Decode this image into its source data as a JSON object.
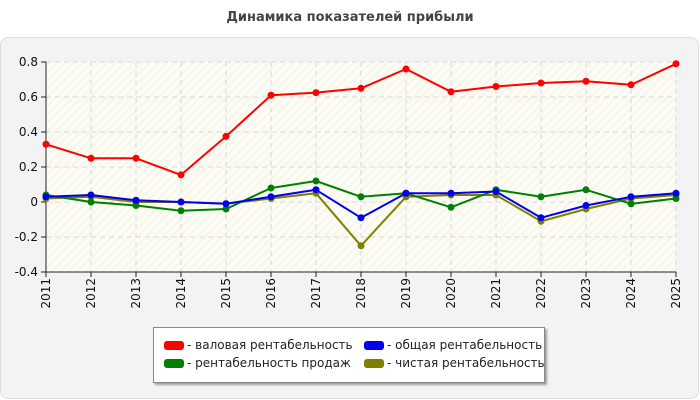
{
  "title": "Динамика показателей прибыли",
  "colors": {
    "background": "#f3f3f3",
    "plot_background": "#fbfbf1",
    "grid": "#d8d8d8",
    "axis": "#222222"
  },
  "chart_data": {
    "type": "line",
    "title": "Динамика показателей прибыли",
    "xlabel": "",
    "ylabel": "",
    "x": [
      "2011",
      "2012",
      "2013",
      "2014",
      "2015",
      "2016",
      "2017",
      "2018",
      "2019",
      "2020",
      "2021",
      "2022",
      "2023",
      "2024",
      "2025"
    ],
    "ylim": [
      -0.4,
      0.8
    ],
    "yticks": [
      -0.4,
      -0.2,
      0,
      0.2,
      0.4,
      0.6,
      0.8
    ],
    "ytick_labels": [
      "-0.4",
      "-0.2",
      "0",
      "0.2",
      "0.4",
      "0.6",
      "0.8"
    ],
    "grid": true,
    "legend_position": "bottom",
    "series": [
      {
        "name": "- валовая рентабельность",
        "color": "#ff0000",
        "values": [
          0.33,
          0.25,
          0.25,
          0.155,
          0.375,
          0.61,
          0.625,
          0.65,
          0.76,
          0.63,
          0.66,
          0.68,
          0.69,
          0.67,
          0.79
        ]
      },
      {
        "name": "- общая рентабельность",
        "color": "#0000ee",
        "values": [
          0.03,
          0.04,
          0.01,
          0.0,
          -0.01,
          0.03,
          0.07,
          -0.09,
          0.05,
          0.05,
          0.06,
          -0.09,
          -0.02,
          0.03,
          0.05
        ]
      },
      {
        "name": "- рентабельность продаж",
        "color": "#008000",
        "values": [
          0.04,
          0.0,
          -0.02,
          -0.05,
          -0.04,
          0.08,
          0.12,
          0.03,
          0.05,
          -0.03,
          0.07,
          0.03,
          0.07,
          -0.01,
          0.02
        ]
      },
      {
        "name": "- чистая рентабельность",
        "color": "#808000",
        "values": [
          0.02,
          0.03,
          0.0,
          0.0,
          -0.01,
          0.02,
          0.05,
          -0.25,
          0.03,
          0.04,
          0.04,
          -0.11,
          -0.04,
          0.02,
          0.04
        ]
      }
    ]
  }
}
